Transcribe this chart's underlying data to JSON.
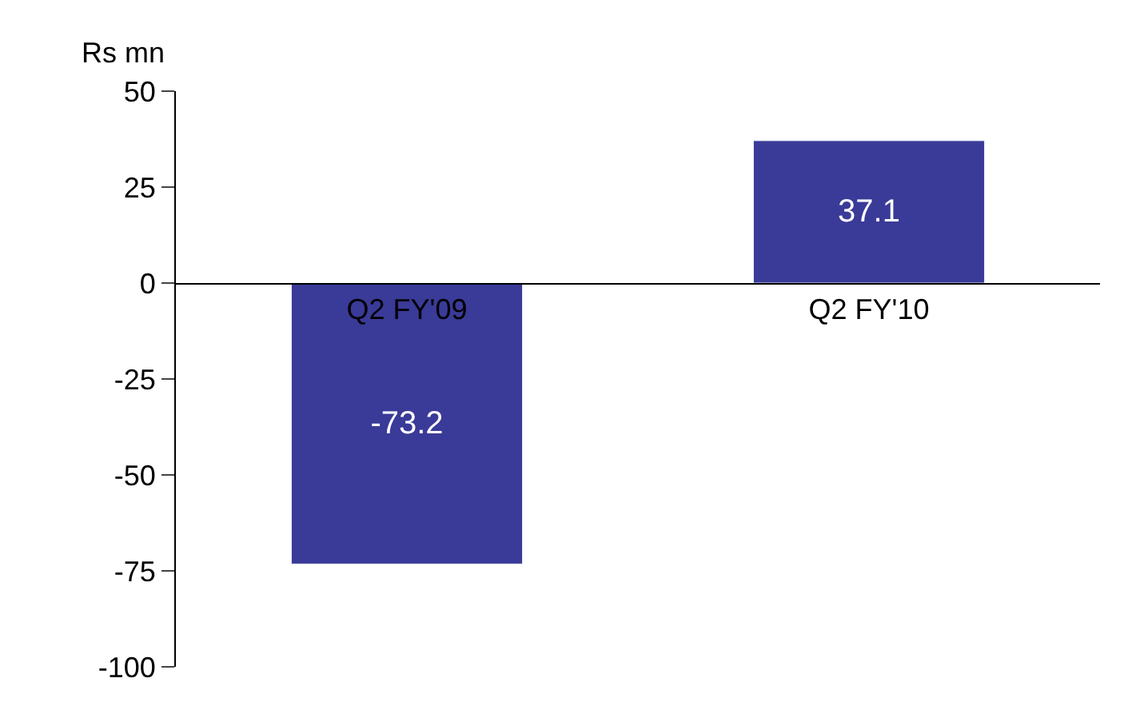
{
  "chart_data": {
    "type": "bar",
    "ylabel": "Rs mn",
    "categories": [
      "Q2 FY'09",
      "Q2 FY'10"
    ],
    "values": [
      -73.2,
      37.1
    ],
    "color": "#3a3a98",
    "ylim": [
      -100,
      50
    ],
    "yticks": [
      -100,
      -75,
      -50,
      -25,
      0,
      25,
      50
    ],
    "data_labels": true
  }
}
